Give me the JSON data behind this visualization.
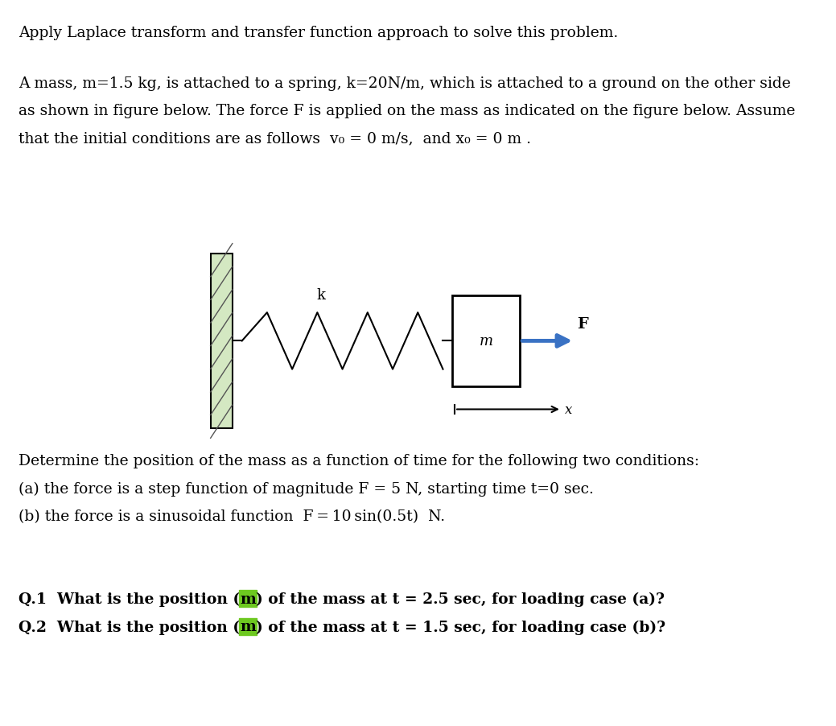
{
  "title_line": "Apply Laplace transform and transfer function approach to solve this problem.",
  "para1_line1": "A mass, m=1.5 kg, is attached to a spring, k=20N/m, which is attached to a ground on the other side",
  "para1_line2": "as shown in figure below. The force F is applied on the mass as indicated on the figure below. Assume",
  "para1_line3": "that the initial conditions are as follows  v₀ = 0 m/s,  and x₀ = 0 m .",
  "para2_line1": "Determine the position of the mass as a function of time for the following two conditions:",
  "para2_line2": "(a) the force is a step function of magnitude F = 5 N, starting time t=0 sec.",
  "para2_line3": "(b) the force is a sinusoidal function  F = 10 sin(0.5t)  N.",
  "wall_color": "#d4e8c2",
  "wall_hatch_color": "#555555",
  "mass_box_color": "#ffffff",
  "arrow_color": "#3a72c4",
  "bg_color": "#ffffff",
  "text_color": "#000000",
  "highlight_color": "#6dc820",
  "fig_width": 10.39,
  "fig_height": 9.03,
  "font_size": 13.5,
  "font_family": "DejaVu Serif"
}
